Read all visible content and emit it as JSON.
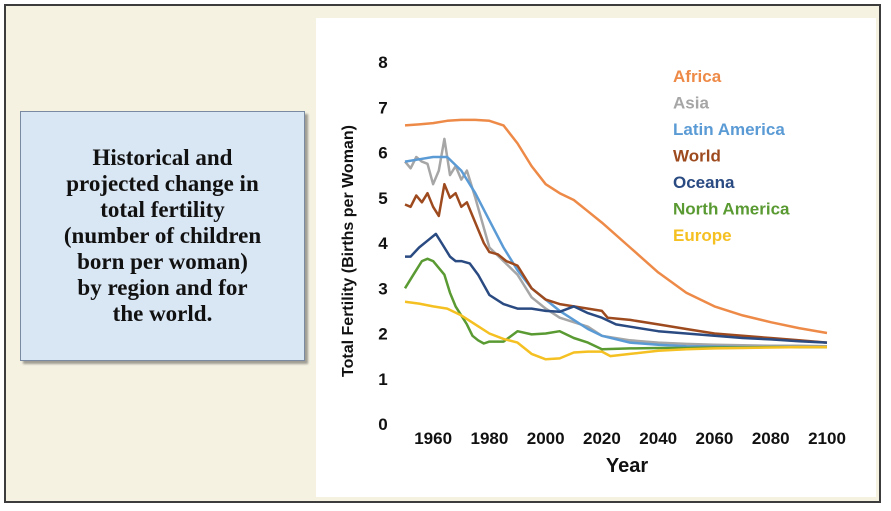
{
  "caption": {
    "text": "Historical and\nprojected change in\ntotal fertility\n(number of children\nborn per woman)\nby region and for\nthe world."
  },
  "chart_data": {
    "type": "line",
    "xlabel": "Year",
    "ylabel": "Total Fertility (Births per Woman)",
    "xlim": [
      1950,
      2100
    ],
    "ylim": [
      0,
      8
    ],
    "xticks": [
      1960,
      1980,
      2000,
      2020,
      2040,
      2060,
      2080,
      2100
    ],
    "yticks": [
      0,
      1,
      2,
      3,
      4,
      5,
      6,
      7,
      8
    ],
    "grid": false,
    "legend_position": "top-right",
    "series": [
      {
        "name": "Africa",
        "color": "#ee8a48",
        "x": [
          1950,
          1955,
          1960,
          1965,
          1970,
          1975,
          1980,
          1985,
          1990,
          1995,
          2000,
          2005,
          2010,
          2015,
          2020,
          2030,
          2040,
          2050,
          2060,
          2070,
          2080,
          2090,
          2100
        ],
        "y": [
          6.6,
          6.62,
          6.65,
          6.7,
          6.72,
          6.72,
          6.7,
          6.6,
          6.2,
          5.7,
          5.3,
          5.1,
          4.95,
          4.7,
          4.45,
          3.9,
          3.35,
          2.9,
          2.6,
          2.4,
          2.25,
          2.12,
          2.01
        ]
      },
      {
        "name": "Asia",
        "color": "#a6a6a6",
        "x": [
          1950,
          1952,
          1954,
          1956,
          1958,
          1960,
          1962,
          1964,
          1966,
          1968,
          1970,
          1972,
          1975,
          1980,
          1985,
          1990,
          1995,
          2000,
          2005,
          2010,
          2015,
          2020,
          2030,
          2040,
          2050,
          2060,
          2070,
          2080,
          2090,
          2100
        ],
        "y": [
          5.8,
          5.65,
          5.9,
          5.8,
          5.75,
          5.3,
          5.6,
          6.3,
          5.5,
          5.7,
          5.4,
          5.6,
          5.0,
          3.9,
          3.6,
          3.3,
          2.8,
          2.55,
          2.35,
          2.25,
          2.15,
          1.95,
          1.85,
          1.8,
          1.77,
          1.75,
          1.74,
          1.73,
          1.73,
          1.72
        ]
      },
      {
        "name": "Latin America",
        "color": "#5b9bd5",
        "x": [
          1950,
          1955,
          1960,
          1965,
          1970,
          1975,
          1980,
          1985,
          1990,
          1995,
          2000,
          2005,
          2010,
          2015,
          2020,
          2030,
          2040,
          2050,
          2060,
          2070,
          2080,
          2090,
          2100
        ],
        "y": [
          5.8,
          5.85,
          5.9,
          5.9,
          5.6,
          5.1,
          4.5,
          3.9,
          3.4,
          3.0,
          2.75,
          2.5,
          2.3,
          2.1,
          1.95,
          1.8,
          1.75,
          1.72,
          1.71,
          1.7,
          1.7,
          1.7,
          1.7
        ]
      },
      {
        "name": "World",
        "color": "#9e4a1f",
        "x": [
          1950,
          1952,
          1954,
          1956,
          1958,
          1960,
          1962,
          1964,
          1966,
          1968,
          1970,
          1972,
          1974,
          1976,
          1978,
          1980,
          1983,
          1986,
          1990,
          1995,
          2000,
          2005,
          2010,
          2015,
          2020,
          2022,
          2030,
          2040,
          2050,
          2060,
          2070,
          2080,
          2090,
          2100
        ],
        "y": [
          4.85,
          4.8,
          5.05,
          4.9,
          5.1,
          4.8,
          4.6,
          5.3,
          5.0,
          5.1,
          4.8,
          4.9,
          4.6,
          4.3,
          4.0,
          3.8,
          3.75,
          3.6,
          3.5,
          3.0,
          2.75,
          2.65,
          2.6,
          2.55,
          2.5,
          2.35,
          2.3,
          2.2,
          2.1,
          2.0,
          1.95,
          1.9,
          1.85,
          1.8
        ]
      },
      {
        "name": "Oceana",
        "color": "#2a4a82",
        "x": [
          1950,
          1952,
          1955,
          1958,
          1961,
          1963,
          1966,
          1968,
          1970,
          1973,
          1976,
          1980,
          1985,
          1990,
          1995,
          2000,
          2005,
          2010,
          2015,
          2020,
          2025,
          2030,
          2040,
          2050,
          2060,
          2070,
          2080,
          2090,
          2100
        ],
        "y": [
          3.7,
          3.7,
          3.9,
          4.05,
          4.2,
          4.0,
          3.7,
          3.6,
          3.6,
          3.55,
          3.3,
          2.85,
          2.65,
          2.55,
          2.55,
          2.5,
          2.48,
          2.6,
          2.45,
          2.35,
          2.2,
          2.15,
          2.05,
          2.0,
          1.95,
          1.9,
          1.87,
          1.83,
          1.8
        ]
      },
      {
        "name": "North America",
        "color": "#5a9a32",
        "x": [
          1950,
          1953,
          1956,
          1958,
          1960,
          1962,
          1964,
          1966,
          1968,
          1970,
          1972,
          1974,
          1976,
          1978,
          1980,
          1985,
          1990,
          1995,
          2000,
          2005,
          2010,
          2015,
          2020,
          2030,
          2040,
          2050,
          2060,
          2070,
          2080,
          2090,
          2100
        ],
        "y": [
          3.0,
          3.3,
          3.6,
          3.65,
          3.6,
          3.45,
          3.3,
          2.9,
          2.6,
          2.4,
          2.2,
          1.95,
          1.85,
          1.78,
          1.82,
          1.82,
          2.05,
          1.98,
          2.0,
          2.05,
          1.9,
          1.8,
          1.65,
          1.67,
          1.68,
          1.68,
          1.69,
          1.69,
          1.7,
          1.7,
          1.7
        ]
      },
      {
        "name": "Europe",
        "color": "#f5c021",
        "x": [
          1950,
          1955,
          1960,
          1965,
          1970,
          1975,
          1980,
          1985,
          1990,
          1995,
          2000,
          2005,
          2010,
          2015,
          2020,
          2023,
          2030,
          2040,
          2050,
          2060,
          2070,
          2080,
          2090,
          2100
        ],
        "y": [
          2.7,
          2.66,
          2.6,
          2.55,
          2.4,
          2.2,
          2.0,
          1.88,
          1.8,
          1.55,
          1.43,
          1.45,
          1.58,
          1.6,
          1.6,
          1.5,
          1.55,
          1.62,
          1.65,
          1.67,
          1.68,
          1.69,
          1.7,
          1.7
        ]
      }
    ]
  }
}
